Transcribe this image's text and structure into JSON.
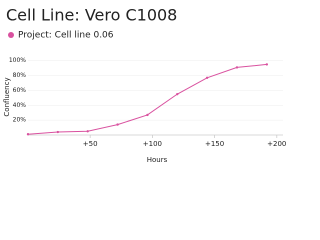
{
  "chart_data": {
    "type": "line",
    "title": "Cell Line: Vero C1008",
    "x": [
      0,
      24,
      48,
      72,
      96,
      120,
      144,
      168,
      192
    ],
    "series": [
      {
        "name": "Project: Cell line 0.06",
        "color": "#d9519f",
        "values": [
          1,
          4,
          5,
          14,
          27,
          55,
          77,
          91,
          95
        ]
      }
    ],
    "xlim": [
      0,
      205
    ],
    "ylim": [
      0,
      105
    ],
    "xticks": [
      {
        "value": 50,
        "label": "+50"
      },
      {
        "value": 100,
        "label": "+100"
      },
      {
        "value": 150,
        "label": "+150"
      },
      {
        "value": 200,
        "label": "+200"
      }
    ],
    "yticks": [
      {
        "value": 20,
        "label": "20%"
      },
      {
        "value": 40,
        "label": "40%"
      },
      {
        "value": 60,
        "label": "60%"
      },
      {
        "value": 80,
        "label": "80%"
      },
      {
        "value": 100,
        "label": "100%"
      }
    ],
    "xlabel": "Hours",
    "ylabel": "Confluency",
    "grid": true
  }
}
